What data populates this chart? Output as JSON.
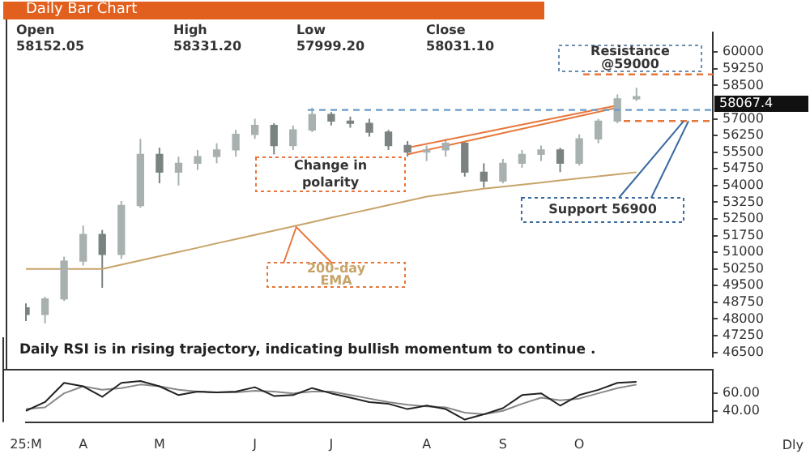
{
  "chart_data": [
    {
      "type": "candlestick",
      "title": "Daily Bar Chart",
      "ohlc": [
        [
          48500,
          48700,
          47900,
          48200
        ],
        [
          48200,
          49000,
          47800,
          48900
        ],
        [
          48900,
          50800,
          48800,
          50600
        ],
        [
          50600,
          52200,
          50400,
          51800
        ],
        [
          51800,
          52000,
          49400,
          50900
        ],
        [
          50900,
          53300,
          50700,
          53100
        ],
        [
          53100,
          56100,
          53000,
          55400
        ],
        [
          55400,
          55700,
          54100,
          54600
        ],
        [
          54600,
          55300,
          54000,
          55000
        ],
        [
          55000,
          55600,
          54700,
          55300
        ],
        [
          55300,
          55900,
          55000,
          55600
        ],
        [
          55600,
          56500,
          55300,
          56300
        ],
        [
          56300,
          57000,
          56100,
          56700
        ],
        [
          56700,
          56800,
          55400,
          55800
        ],
        [
          55800,
          56700,
          55600,
          56500
        ],
        [
          56500,
          57500,
          56400,
          57200
        ],
        [
          57200,
          57300,
          56700,
          56900
        ],
        [
          56900,
          57100,
          56600,
          56800
        ],
        [
          56800,
          57000,
          56200,
          56400
        ],
        [
          56400,
          56500,
          55600,
          55800
        ],
        [
          55800,
          56000,
          55300,
          55500
        ],
        [
          55500,
          55800,
          55100,
          55600
        ],
        [
          55600,
          56100,
          55300,
          55900
        ],
        [
          55900,
          56000,
          54400,
          54600
        ],
        [
          54600,
          55000,
          53900,
          54200
        ],
        [
          54200,
          55200,
          54100,
          55000
        ],
        [
          55000,
          55600,
          54800,
          55400
        ],
        [
          55400,
          55800,
          55100,
          55600
        ],
        [
          55600,
          55700,
          54600,
          55000
        ],
        [
          55000,
          56300,
          54900,
          56100
        ],
        [
          56100,
          57000,
          55900,
          56900
        ],
        [
          56900,
          58100,
          56800,
          57900
        ],
        [
          57900,
          58400,
          57800,
          58000
        ],
        null,
        null,
        null,
        null
      ],
      "colors": [
        "#7a8282",
        "#a8b0b0",
        "#a8b0b0",
        "#a8b0b0",
        "#7a8282",
        "#a8b0b0",
        "#a8b0b0",
        "#7a8282",
        "#a8b0b0",
        "#a8b0b0",
        "#a8b0b0",
        "#a8b0b0",
        "#a8b0b0",
        "#7a8282",
        "#a8b0b0",
        "#a8b0b0",
        "#7a8282",
        "#7a8282",
        "#7a8282",
        "#7a8282",
        "#7a8282",
        "#a8b0b0",
        "#a8b0b0",
        "#7a8282",
        "#7a8282",
        "#a8b0b0",
        "#a8b0b0",
        "#a8b0b0",
        "#7a8282",
        "#a8b0b0",
        "#a8b0b0",
        "#a8b0b0",
        "#a8b0b0",
        null,
        null,
        null,
        null
      ],
      "series": [
        {
          "type": "line",
          "name": "200-day EMA",
          "color": "#c8a46a",
          "values": [
            50250,
            50250,
            50250,
            50250,
            50250,
            50440,
            50630,
            50820,
            51010,
            51200,
            51400,
            51590,
            51780,
            51970,
            52160,
            52350,
            52550,
            52740,
            52930,
            53120,
            53310,
            53500,
            53620,
            53740,
            53860,
            53950,
            54040,
            54130,
            54230,
            54320,
            54410,
            54500,
            54600,
            null,
            null,
            null,
            null
          ]
        },
        {
          "type": "line",
          "color": "#e8763a",
          "values": [
            null,
            null,
            null,
            null,
            null,
            null,
            null,
            null,
            null,
            null,
            null,
            null,
            null,
            null,
            null,
            null,
            null,
            null,
            null,
            null,
            55700,
            null,
            null,
            null,
            null,
            null,
            null,
            null,
            null,
            null,
            null,
            57600,
            null,
            null,
            null,
            null,
            null
          ]
        },
        {
          "type": "line",
          "color": "#e8763a",
          "values": [
            null,
            null,
            null,
            null,
            null,
            null,
            null,
            null,
            null,
            null,
            null,
            null,
            null,
            null,
            null,
            null,
            null,
            null,
            null,
            null,
            55400,
            null,
            null,
            null,
            null,
            null,
            null,
            null,
            null,
            null,
            null,
            57500,
            null,
            null,
            null,
            null,
            null
          ]
        }
      ],
      "ylim": [
        46300,
        60900
      ],
      "yticks": [
        46500,
        47250,
        48000,
        48750,
        49500,
        50250,
        51000,
        51750,
        52500,
        53250,
        54000,
        54750,
        55500,
        56250,
        57000,
        58500,
        59250,
        60000
      ],
      "tick_labels": "y",
      "ref_lines": [
        {
          "axis": "y",
          "value": 59000,
          "label": "Resistance @59000",
          "color": "#e8763a",
          "line_style": "dashed"
        },
        {
          "axis": "y",
          "value": 57400,
          "color": "#6a9ccc",
          "line_style": "dashed"
        },
        {
          "axis": "y",
          "value": 56900,
          "label": "Support 56900",
          "color": "#e8763a",
          "line_style": "dashed"
        }
      ],
      "annotations": [
        "Open",
        "High",
        "Low",
        "Close",
        "58152.05",
        "58331.20",
        "57999.20",
        "58031.10",
        "Change in polarity",
        "58067.4"
      ]
    },
    {
      "type": "line",
      "title": "Daily RSI is in rising trajectory, indicating bullish momentum to continue .",
      "categories": [
        "25:M",
        null,
        null,
        "A",
        null,
        null,
        null,
        "M",
        null,
        null,
        null,
        null,
        "J",
        null,
        null,
        null,
        "J",
        null,
        null,
        null,
        null,
        "A",
        null,
        null,
        null,
        "S",
        null,
        null,
        null,
        "O",
        null,
        null,
        null,
        null,
        null,
        null,
        null
      ],
      "series": [
        {
          "color": "#222222",
          "values": [
            40,
            50,
            72,
            68,
            56,
            72,
            74,
            68,
            58,
            62,
            61,
            62,
            67,
            57,
            58,
            66,
            60,
            55,
            50,
            48,
            42,
            46,
            42,
            30,
            36,
            43,
            58,
            60,
            46,
            58,
            64,
            72,
            73,
            null,
            null,
            null,
            null
          ]
        },
        {
          "color": "#888888",
          "values": [
            42,
            44,
            60,
            68,
            64,
            66,
            70,
            68,
            64,
            62,
            61,
            61,
            63,
            62,
            60,
            62,
            62,
            58,
            54,
            50,
            47,
            45,
            44,
            38,
            36,
            40,
            48,
            55,
            52,
            54,
            60,
            66,
            70,
            null,
            null,
            null,
            null
          ]
        }
      ],
      "ylim": [
        27,
        87
      ],
      "yticks": [
        {
          "value": 40,
          "label": "40.00"
        },
        {
          "value": 60,
          "label": "60.00"
        }
      ],
      "annotations": [
        "Dly"
      ]
    }
  ]
}
